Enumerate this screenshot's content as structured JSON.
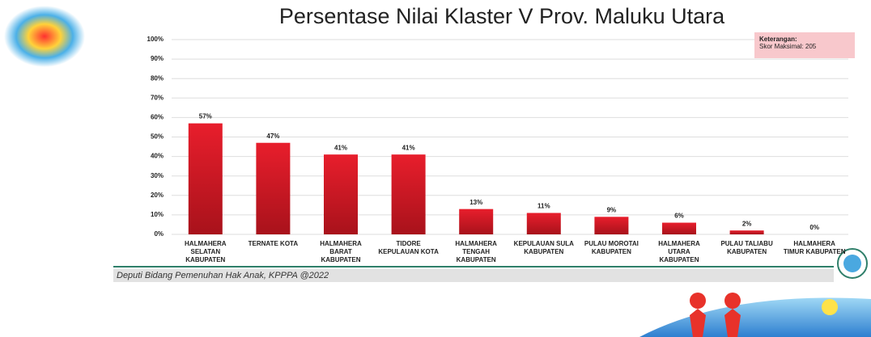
{
  "chart_data": {
    "type": "bar",
    "title": "Persentase Nilai Klaster V Prov. Maluku Utara",
    "categories": [
      "HALMAHERA SELATAN KABUPATEN",
      "TERNATE KOTA",
      "HALMAHERA BARAT KABUPATEN",
      "TIDORE KEPULAUAN KOTA",
      "HALMAHERA TENGAH KABUPATEN",
      "KEPULAUAN SULA KABUPATEN",
      "PULAU MOROTAI KABUPATEN",
      "HALMAHERA UTARA KABUPATEN",
      "PULAU TALIABU KABUPATEN",
      "HALMAHERA TIMUR KABUPATEN"
    ],
    "values": [
      57,
      47,
      41,
      41,
      13,
      11,
      9,
      6,
      2,
      0
    ],
    "value_labels": [
      "57%",
      "47%",
      "41%",
      "41%",
      "13%",
      "11%",
      "9%",
      "6%",
      "2%",
      "0%"
    ],
    "color": "#e81e2c",
    "ylim": [
      0,
      100
    ],
    "yticks": [
      {
        "value": 0,
        "label": "0%"
      },
      {
        "value": 10,
        "label": "10%"
      },
      {
        "value": 20,
        "label": "20%"
      },
      {
        "value": 30,
        "label": "30%"
      },
      {
        "value": 40,
        "label": "40%"
      },
      {
        "value": 50,
        "label": "50%"
      },
      {
        "value": 60,
        "label": "60%"
      },
      {
        "value": 70,
        "label": "70%"
      },
      {
        "value": 80,
        "label": "80%"
      },
      {
        "value": 90,
        "label": "90%"
      },
      {
        "value": 100,
        "label": "100%"
      }
    ],
    "grid": true,
    "annotations": [
      "Keterangan:",
      "Skor Maksimal: 205"
    ],
    "footer": "Deputi Bidang Pemenuhan Hak Anak, KPPPA @2022"
  }
}
